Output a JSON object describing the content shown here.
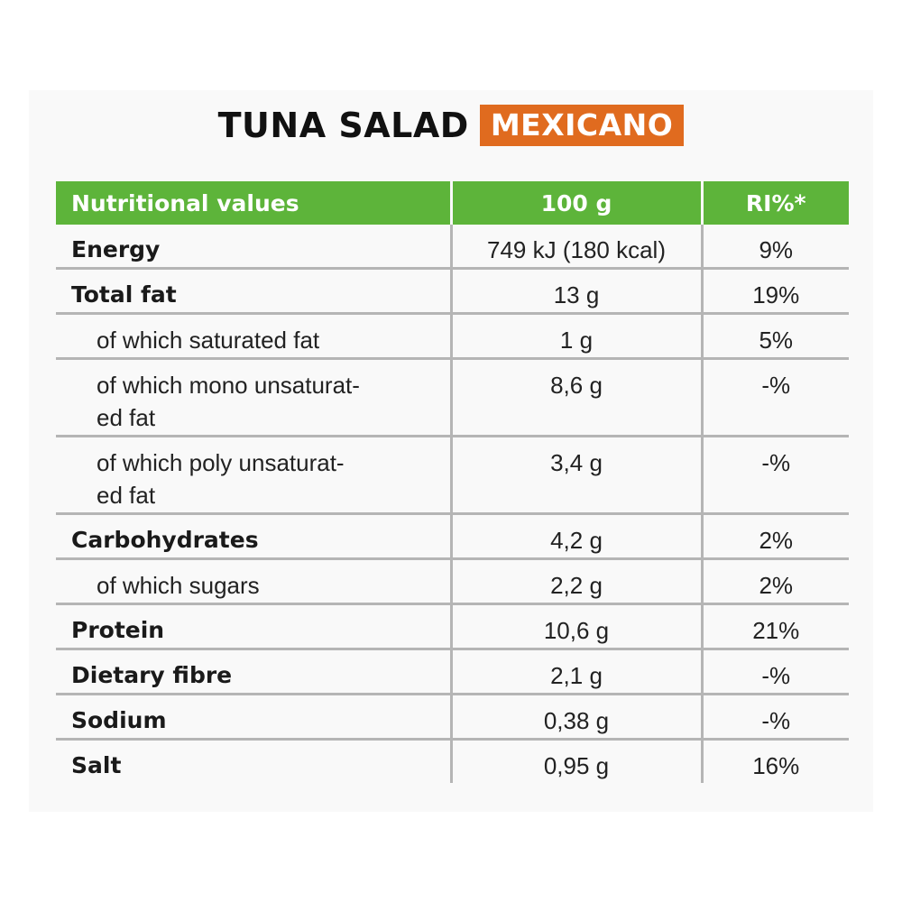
{
  "title": {
    "main": "TUNA SALAD",
    "badge": "MEXICANO"
  },
  "table": {
    "headers": [
      "Nutritional values",
      "100 g",
      "RI%*"
    ],
    "rows": [
      {
        "label": "Energy",
        "amount": "749 kJ (180 kcal)",
        "ri": "9%",
        "bold": true,
        "sub": false
      },
      {
        "label": "Total fat",
        "amount": "13 g",
        "ri": "19%",
        "bold": true,
        "sub": false
      },
      {
        "label": "of which saturated fat",
        "amount": "1 g",
        "ri": "5%",
        "bold": false,
        "sub": true
      },
      {
        "label": "of which mono unsaturat-",
        "label_line2": "ed fat",
        "amount": "8,6 g",
        "ri": "-%",
        "bold": false,
        "sub": true
      },
      {
        "label": "of which poly unsaturat-",
        "label_line2": "ed fat",
        "amount": "3,4 g",
        "ri": "-%",
        "bold": false,
        "sub": true
      },
      {
        "label": "Carbohydrates",
        "amount": "4,2 g",
        "ri": "2%",
        "bold": true,
        "sub": false
      },
      {
        "label": "of which sugars",
        "amount": "2,2 g",
        "ri": "2%",
        "bold": false,
        "sub": true
      },
      {
        "label": "Protein",
        "amount": "10,6 g",
        "ri": "21%",
        "bold": true,
        "sub": false
      },
      {
        "label": "Dietary fibre",
        "amount": "2,1 g",
        "ri": "-%",
        "bold": true,
        "sub": false
      },
      {
        "label": "Sodium",
        "amount": "0,38 g",
        "ri": "-%",
        "bold": true,
        "sub": false
      },
      {
        "label": "Salt",
        "amount": "0,95 g",
        "ri": "16%",
        "bold": true,
        "sub": false
      }
    ]
  },
  "colors": {
    "header_green": "#5db43a",
    "badge_orange": "#e06b1f",
    "divider_gray": "#b5b5b5"
  }
}
